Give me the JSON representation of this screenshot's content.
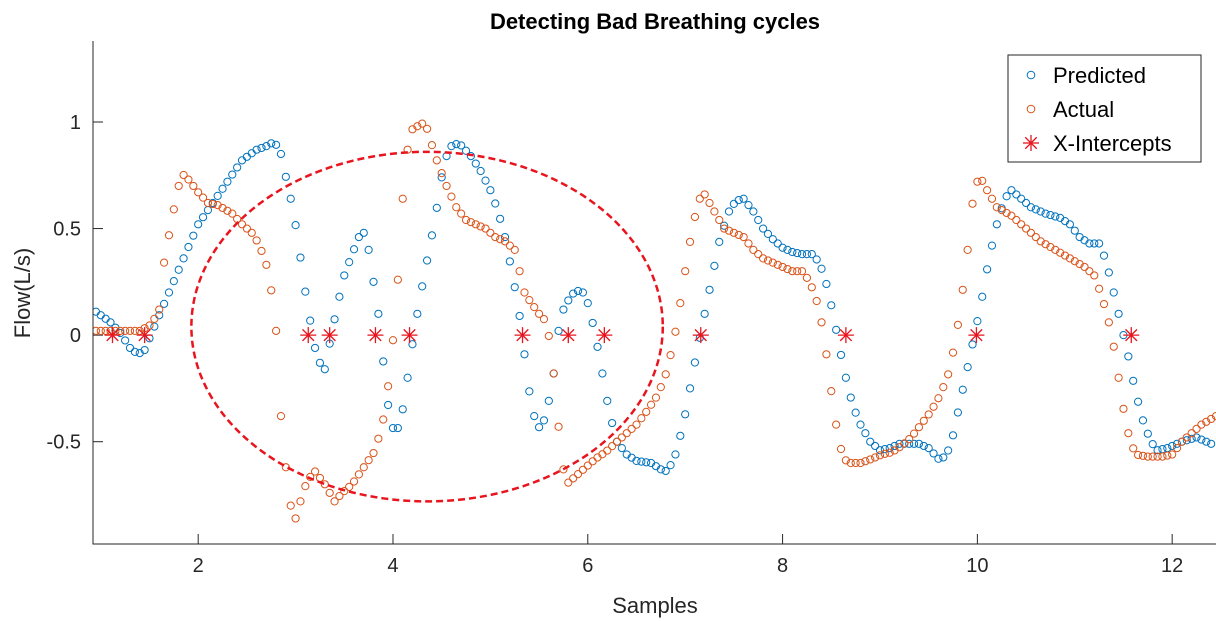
{
  "chart_data": {
    "type": "scatter",
    "title": "Detecting Bad Breathing cycles",
    "xlabel": "Samples",
    "ylabel": "Flow(L/s)",
    "xlim": [
      0.92,
      12.45
    ],
    "ylim": [
      -0.98,
      1.38
    ],
    "xticks": [
      2,
      4,
      6,
      8,
      10,
      12
    ],
    "yticks": [
      -0.5,
      0,
      0.5,
      1
    ],
    "ytick_labels": [
      "-0.5",
      "0",
      "0.5",
      "1"
    ],
    "legend_position": "top-right",
    "series": [
      {
        "name": "Predicted",
        "marker": "circle",
        "color": "#0072BD",
        "keypoints": [
          [
            0.95,
            0.11
          ],
          [
            1.1,
            0.06
          ],
          [
            1.2,
            0.01
          ],
          [
            1.3,
            -0.06
          ],
          [
            1.38,
            -0.09
          ],
          [
            1.45,
            -0.07
          ],
          [
            1.55,
            0.04
          ],
          [
            1.7,
            0.2
          ],
          [
            1.85,
            0.36
          ],
          [
            2.0,
            0.52
          ],
          [
            2.15,
            0.62
          ],
          [
            2.3,
            0.72
          ],
          [
            2.45,
            0.82
          ],
          [
            2.6,
            0.87
          ],
          [
            2.72,
            0.89
          ],
          [
            2.78,
            0.91
          ],
          [
            2.85,
            0.85
          ],
          [
            2.92,
            0.7
          ],
          [
            2.97,
            0.6
          ],
          [
            3.02,
            0.46
          ],
          [
            3.07,
            0.3
          ],
          [
            3.12,
            0.14
          ],
          [
            3.17,
            0.02
          ],
          [
            3.2,
            -0.06
          ],
          [
            3.25,
            -0.13
          ],
          [
            3.3,
            -0.16
          ],
          [
            3.35,
            -0.04
          ],
          [
            3.42,
            0.12
          ],
          [
            3.5,
            0.28
          ],
          [
            3.58,
            0.38
          ],
          [
            3.65,
            0.46
          ],
          [
            3.7,
            0.48
          ],
          [
            3.75,
            0.4
          ],
          [
            3.8,
            0.25
          ],
          [
            3.86,
            0.07
          ],
          [
            3.92,
            -0.22
          ],
          [
            3.97,
            -0.4
          ],
          [
            4.02,
            -0.46
          ],
          [
            4.07,
            -0.42
          ],
          [
            4.12,
            -0.3
          ],
          [
            4.18,
            -0.1
          ],
          [
            4.25,
            0.1
          ],
          [
            4.32,
            0.28
          ],
          [
            4.38,
            0.42
          ],
          [
            4.43,
            0.54
          ],
          [
            4.5,
            0.74
          ],
          [
            4.56,
            0.86
          ],
          [
            4.62,
            0.9
          ],
          [
            4.7,
            0.89
          ],
          [
            4.8,
            0.84
          ],
          [
            4.9,
            0.77
          ],
          [
            5.0,
            0.68
          ],
          [
            5.08,
            0.58
          ],
          [
            5.15,
            0.46
          ],
          [
            5.22,
            0.3
          ],
          [
            5.28,
            0.15
          ],
          [
            5.33,
            0.0
          ],
          [
            5.37,
            -0.18
          ],
          [
            5.42,
            -0.32
          ],
          [
            5.47,
            -0.42
          ],
          [
            5.52,
            -0.44
          ],
          [
            5.58,
            -0.36
          ],
          [
            5.65,
            -0.18
          ],
          [
            5.7,
            0.02
          ],
          [
            5.75,
            0.12
          ],
          [
            5.82,
            0.18
          ],
          [
            5.88,
            0.21
          ],
          [
            5.95,
            0.2
          ],
          [
            6.0,
            0.15
          ],
          [
            6.07,
            0.02
          ],
          [
            6.15,
            -0.18
          ],
          [
            6.22,
            -0.36
          ],
          [
            6.3,
            -0.5
          ],
          [
            6.4,
            -0.56
          ],
          [
            6.5,
            -0.59
          ],
          [
            6.65,
            -0.6
          ],
          [
            6.75,
            -0.63
          ],
          [
            6.82,
            -0.64
          ],
          [
            6.9,
            -0.56
          ],
          [
            6.98,
            -0.42
          ],
          [
            7.05,
            -0.25
          ],
          [
            7.12,
            -0.08
          ],
          [
            7.2,
            0.1
          ],
          [
            7.28,
            0.28
          ],
          [
            7.36,
            0.46
          ],
          [
            7.45,
            0.58
          ],
          [
            7.52,
            0.63
          ],
          [
            7.6,
            0.64
          ],
          [
            7.7,
            0.58
          ],
          [
            7.8,
            0.5
          ],
          [
            7.9,
            0.45
          ],
          [
            8.0,
            0.41
          ],
          [
            8.1,
            0.39
          ],
          [
            8.2,
            0.38
          ],
          [
            8.3,
            0.38
          ],
          [
            8.38,
            0.34
          ],
          [
            8.45,
            0.24
          ],
          [
            8.52,
            0.1
          ],
          [
            8.58,
            -0.05
          ],
          [
            8.65,
            -0.2
          ],
          [
            8.72,
            -0.33
          ],
          [
            8.8,
            -0.42
          ],
          [
            8.9,
            -0.5
          ],
          [
            9.0,
            -0.54
          ],
          [
            9.1,
            -0.53
          ],
          [
            9.2,
            -0.51
          ],
          [
            9.3,
            -0.51
          ],
          [
            9.4,
            -0.51
          ],
          [
            9.5,
            -0.53
          ],
          [
            9.6,
            -0.58
          ],
          [
            9.68,
            -0.57
          ],
          [
            9.75,
            -0.47
          ],
          [
            9.82,
            -0.32
          ],
          [
            9.9,
            -0.15
          ],
          [
            9.98,
            0.02
          ],
          [
            10.05,
            0.18
          ],
          [
            10.12,
            0.36
          ],
          [
            10.2,
            0.52
          ],
          [
            10.28,
            0.64
          ],
          [
            10.35,
            0.68
          ],
          [
            10.45,
            0.64
          ],
          [
            10.55,
            0.6
          ],
          [
            10.7,
            0.57
          ],
          [
            10.85,
            0.55
          ],
          [
            10.95,
            0.52
          ],
          [
            11.05,
            0.46
          ],
          [
            11.15,
            0.43
          ],
          [
            11.25,
            0.43
          ],
          [
            11.32,
            0.35
          ],
          [
            11.4,
            0.2
          ],
          [
            11.48,
            0.04
          ],
          [
            11.55,
            -0.1
          ],
          [
            11.62,
            -0.26
          ],
          [
            11.7,
            -0.4
          ],
          [
            11.78,
            -0.5
          ],
          [
            11.85,
            -0.54
          ],
          [
            11.95,
            -0.53
          ],
          [
            12.1,
            -0.5
          ],
          [
            12.25,
            -0.48
          ],
          [
            12.4,
            -0.51
          ]
        ]
      },
      {
        "name": "Actual",
        "marker": "circle",
        "color": "#D95319",
        "keypoints": [
          [
            0.95,
            0.02
          ],
          [
            1.2,
            0.02
          ],
          [
            1.4,
            0.02
          ],
          [
            1.52,
            0.05
          ],
          [
            1.6,
            0.12
          ],
          [
            1.65,
            0.34
          ],
          [
            1.72,
            0.52
          ],
          [
            1.78,
            0.66
          ],
          [
            1.83,
            0.76
          ],
          [
            1.9,
            0.73
          ],
          [
            2.0,
            0.67
          ],
          [
            2.1,
            0.62
          ],
          [
            2.2,
            0.61
          ],
          [
            2.35,
            0.57
          ],
          [
            2.45,
            0.52
          ],
          [
            2.55,
            0.48
          ],
          [
            2.62,
            0.43
          ],
          [
            2.68,
            0.36
          ],
          [
            2.72,
            0.3
          ],
          [
            2.76,
            0.18
          ],
          [
            2.8,
            0.02
          ],
          [
            2.85,
            -0.38
          ],
          [
            2.9,
            -0.62
          ],
          [
            2.95,
            -0.8
          ],
          [
            3.0,
            -0.86
          ],
          [
            3.05,
            -0.78
          ],
          [
            3.12,
            -0.68
          ],
          [
            3.2,
            -0.64
          ],
          [
            3.3,
            -0.7
          ],
          [
            3.4,
            -0.78
          ],
          [
            3.48,
            -0.74
          ],
          [
            3.58,
            -0.7
          ],
          [
            3.7,
            -0.62
          ],
          [
            3.82,
            -0.54
          ],
          [
            3.92,
            -0.36
          ],
          [
            3.98,
            -0.12
          ],
          [
            4.03,
            0.12
          ],
          [
            4.07,
            0.4
          ],
          [
            4.1,
            0.64
          ],
          [
            4.14,
            0.84
          ],
          [
            4.18,
            0.96
          ],
          [
            4.25,
            0.98
          ],
          [
            4.33,
            1.0
          ],
          [
            4.38,
            0.92
          ],
          [
            4.45,
            0.82
          ],
          [
            4.55,
            0.7
          ],
          [
            4.65,
            0.6
          ],
          [
            4.75,
            0.54
          ],
          [
            4.85,
            0.52
          ],
          [
            4.95,
            0.5
          ],
          [
            5.05,
            0.46
          ],
          [
            5.15,
            0.44
          ],
          [
            5.25,
            0.4
          ],
          [
            5.3,
            0.3
          ],
          [
            5.35,
            0.2
          ],
          [
            5.42,
            0.15
          ],
          [
            5.5,
            0.1
          ],
          [
            5.58,
            0.06
          ],
          [
            5.63,
            -0.1
          ],
          [
            5.68,
            -0.3
          ],
          [
            5.72,
            -0.56
          ],
          [
            5.78,
            -0.7
          ],
          [
            5.88,
            -0.66
          ],
          [
            5.98,
            -0.62
          ],
          [
            6.08,
            -0.58
          ],
          [
            6.18,
            -0.55
          ],
          [
            6.3,
            -0.5
          ],
          [
            6.4,
            -0.46
          ],
          [
            6.5,
            -0.42
          ],
          [
            6.6,
            -0.36
          ],
          [
            6.72,
            -0.28
          ],
          [
            6.82,
            -0.16
          ],
          [
            6.92,
            0.06
          ],
          [
            7.0,
            0.3
          ],
          [
            7.08,
            0.52
          ],
          [
            7.15,
            0.64
          ],
          [
            7.2,
            0.66
          ],
          [
            7.3,
            0.58
          ],
          [
            7.4,
            0.5
          ],
          [
            7.5,
            0.48
          ],
          [
            7.6,
            0.46
          ],
          [
            7.7,
            0.4
          ],
          [
            7.8,
            0.36
          ],
          [
            7.9,
            0.34
          ],
          [
            8.0,
            0.32
          ],
          [
            8.1,
            0.3
          ],
          [
            8.2,
            0.3
          ],
          [
            8.28,
            0.25
          ],
          [
            8.35,
            0.16
          ],
          [
            8.42,
            0.02
          ],
          [
            8.48,
            -0.2
          ],
          [
            8.55,
            -0.42
          ],
          [
            8.62,
            -0.58
          ],
          [
            8.7,
            -0.6
          ],
          [
            8.8,
            -0.6
          ],
          [
            8.92,
            -0.58
          ],
          [
            9.02,
            -0.56
          ],
          [
            9.12,
            -0.55
          ],
          [
            9.22,
            -0.52
          ],
          [
            9.32,
            -0.48
          ],
          [
            9.42,
            -0.42
          ],
          [
            9.52,
            -0.36
          ],
          [
            9.62,
            -0.28
          ],
          [
            9.72,
            -0.16
          ],
          [
            9.82,
            0.1
          ],
          [
            9.9,
            0.4
          ],
          [
            9.96,
            0.66
          ],
          [
            10.02,
            0.75
          ],
          [
            10.1,
            0.68
          ],
          [
            10.2,
            0.6
          ],
          [
            10.35,
            0.56
          ],
          [
            10.5,
            0.5
          ],
          [
            10.65,
            0.44
          ],
          [
            10.8,
            0.4
          ],
          [
            10.95,
            0.36
          ],
          [
            11.1,
            0.32
          ],
          [
            11.2,
            0.28
          ],
          [
            11.28,
            0.18
          ],
          [
            11.35,
            0.06
          ],
          [
            11.42,
            -0.1
          ],
          [
            11.48,
            -0.3
          ],
          [
            11.55,
            -0.46
          ],
          [
            11.62,
            -0.56
          ],
          [
            11.75,
            -0.57
          ],
          [
            11.9,
            -0.57
          ],
          [
            12.0,
            -0.56
          ],
          [
            12.1,
            -0.5
          ],
          [
            12.2,
            -0.46
          ],
          [
            12.3,
            -0.42
          ],
          [
            12.45,
            -0.38
          ]
        ]
      },
      {
        "name": "X-Intercepts",
        "marker": "asterisk",
        "color": "#E8141E",
        "x": [
          1.12,
          1.45,
          3.13,
          3.35,
          3.82,
          4.17,
          5.33,
          5.8,
          6.17,
          7.16,
          8.65,
          9.99,
          11.58
        ],
        "y": [
          0,
          0,
          0,
          0,
          0,
          0,
          0,
          0,
          0,
          0,
          0,
          0,
          0
        ]
      }
    ],
    "annotations": [
      {
        "type": "dashed-ellipse",
        "color": "#E8141E",
        "center": [
          4.35,
          0.04
        ],
        "radius_x": 2.42,
        "radius_y": 0.82
      }
    ]
  }
}
